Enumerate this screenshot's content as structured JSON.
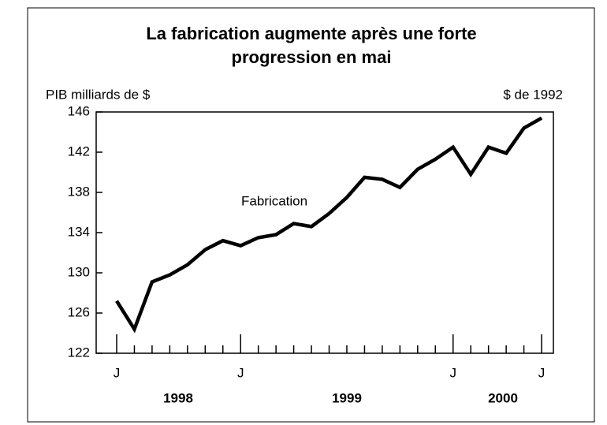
{
  "chart_data": {
    "type": "line",
    "title": [
      "La fabrication augmente après une forte",
      "progression en mai"
    ],
    "y_label": "PIB milliards de $",
    "y_label_right": "$ de 1992",
    "annotation": "Fabrication",
    "categories": [
      "J",
      null,
      null,
      null,
      null,
      null,
      null,
      "J",
      null,
      null,
      null,
      null,
      null,
      null,
      null,
      null,
      null,
      null,
      null,
      "J",
      null,
      null,
      null,
      null,
      "J"
    ],
    "years": [
      "1998",
      "1999",
      "2000"
    ],
    "series": [
      {
        "name": "Fabrication",
        "color": "#000000",
        "values": [
          127.2,
          124.4,
          129.1,
          129.8,
          130.8,
          132.3,
          133.2,
          132.7,
          133.5,
          133.8,
          134.9,
          134.6,
          135.9,
          137.5,
          139.5,
          139.3,
          138.5,
          140.3,
          141.3,
          142.5,
          139.8,
          142.5,
          141.9,
          144.4,
          145.4
        ]
      }
    ],
    "ylim": [
      122,
      146
    ],
    "yticks": [
      122,
      126,
      130,
      134,
      138,
      142,
      146
    ]
  }
}
